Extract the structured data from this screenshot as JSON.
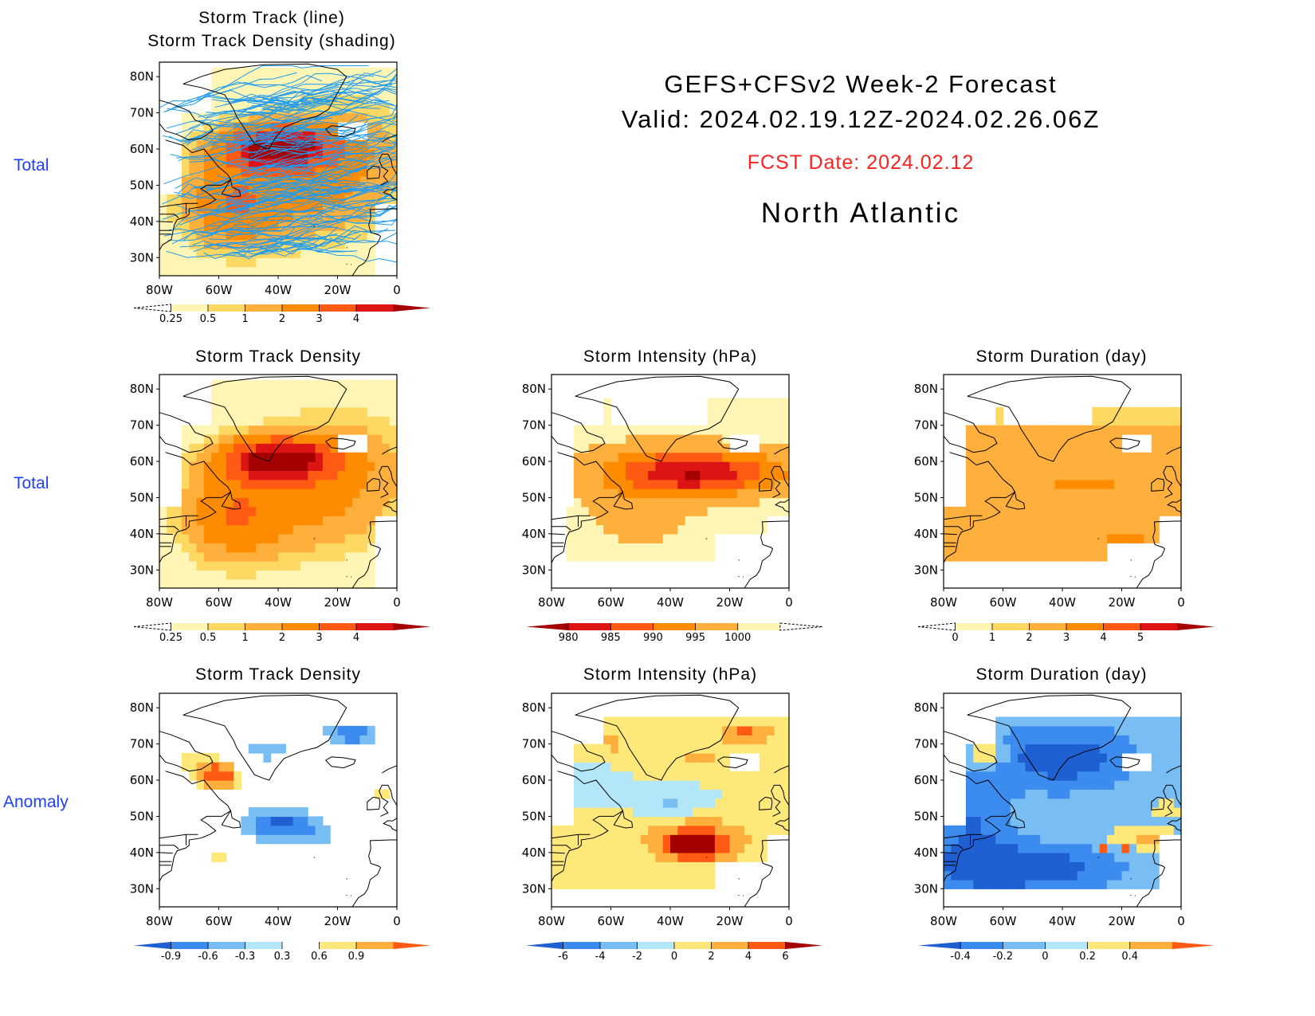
{
  "header": {
    "title": "GEFS+CFSv2 Week-2 Forecast",
    "valid": "Valid: 2024.02.19.12Z-2024.02.26.06Z",
    "fcst_date": "FCST Date: 2024.02.12",
    "region": "North Atlantic"
  },
  "row_labels": [
    "Total",
    "Total",
    "Anomaly"
  ],
  "axes": {
    "x_ticks": [
      "80W",
      "60W",
      "40W",
      "20W",
      "0"
    ],
    "y_ticks": [
      "80N",
      "70N",
      "60N",
      "50N",
      "40N",
      "30N"
    ]
  },
  "colors": {
    "warm": [
      "#fff5b4",
      "#fdd862",
      "#ffaf3c",
      "#ff8c00",
      "#ff5a14",
      "#dc1414",
      "#a50000"
    ],
    "cool": [
      "#1e5fd2",
      "#3c8cf0",
      "#78bef5",
      "#b4e6fa"
    ],
    "track_line": "#1f9bf0"
  },
  "chart_data": [
    {
      "id": "track",
      "type": "heatmap",
      "title": "Storm Track (line)",
      "subtitle": "Storm Track Density (shading)",
      "xlim": [
        -80,
        0
      ],
      "ylim": [
        25,
        84
      ],
      "colorbar": {
        "ticks": [
          "0.25",
          "0.5",
          "1",
          "2",
          "3",
          "4"
        ],
        "colors": [
          "#fff5b4",
          "#fdd862",
          "#ffaf3c",
          "#ff8c00",
          "#ff5a14",
          "#dc1414",
          "#a50000"
        ]
      },
      "lines": true
    },
    {
      "id": "density",
      "type": "heatmap",
      "title": "Storm Track Density",
      "xlim": [
        -80,
        0
      ],
      "ylim": [
        25,
        84
      ],
      "colorbar": {
        "ticks": [
          "0.25",
          "0.5",
          "1",
          "2",
          "3",
          "4"
        ],
        "colors": [
          "#fff5b4",
          "#fdd862",
          "#ffaf3c",
          "#ff8c00",
          "#ff5a14",
          "#dc1414",
          "#a50000"
        ]
      }
    },
    {
      "id": "intensity",
      "type": "heatmap",
      "title": "Storm Intensity (hPa)",
      "xlim": [
        -80,
        0
      ],
      "ylim": [
        25,
        84
      ],
      "colorbar": {
        "ticks": [
          "980",
          "985",
          "990",
          "995",
          "1000"
        ],
        "colors": [
          "#a50000",
          "#dc1414",
          "#ff5a14",
          "#ff8c00",
          "#ffaf3c",
          "#fff5b4"
        ]
      }
    },
    {
      "id": "duration",
      "type": "heatmap",
      "title": "Storm Duration (day)",
      "xlim": [
        -80,
        0
      ],
      "ylim": [
        25,
        84
      ],
      "colorbar": {
        "ticks": [
          "0",
          "1",
          "2",
          "3",
          "4",
          "5"
        ],
        "colors": [
          "#fff5b4",
          "#fdd862",
          "#ffaf3c",
          "#ff8c00",
          "#ff5a14",
          "#dc1414",
          "#a50000"
        ]
      }
    },
    {
      "id": "density_anom",
      "type": "heatmap",
      "title": "Storm Track Density",
      "xlim": [
        -80,
        0
      ],
      "ylim": [
        25,
        84
      ],
      "colorbar": {
        "ticks": [
          "-0.9",
          "-0.6",
          "-0.3",
          "0.3",
          "0.6",
          "0.9"
        ],
        "colors": [
          "#1e5fd2",
          "#3c8cf0",
          "#78bef5",
          "#b4e6fa",
          "#ffffff",
          "#fee87a",
          "#ffaf3c",
          "#ff5a14"
        ]
      }
    },
    {
      "id": "intensity_anom",
      "type": "heatmap",
      "title": "Storm Intensity (hPa)",
      "xlim": [
        -80,
        0
      ],
      "ylim": [
        25,
        84
      ],
      "colorbar": {
        "ticks": [
          "-6",
          "-4",
          "-2",
          "0",
          "2",
          "4",
          "6"
        ],
        "colors": [
          "#1e5fd2",
          "#3c8cf0",
          "#78bef5",
          "#b4e6fa",
          "#fee87a",
          "#ffaf3c",
          "#ff5a14",
          "#a50000"
        ]
      }
    },
    {
      "id": "duration_anom",
      "type": "heatmap",
      "title": "Storm Duration (day)",
      "xlim": [
        -80,
        0
      ],
      "ylim": [
        25,
        84
      ],
      "colorbar": {
        "ticks": [
          "-0.4",
          "-0.2",
          "0",
          "0.2",
          "0.4"
        ],
        "colors": [
          "#1e5fd2",
          "#3c8cf0",
          "#78bef5",
          "#b4e6fa",
          "#fee87a",
          "#ffaf3c",
          "#ff5a14"
        ]
      }
    }
  ]
}
